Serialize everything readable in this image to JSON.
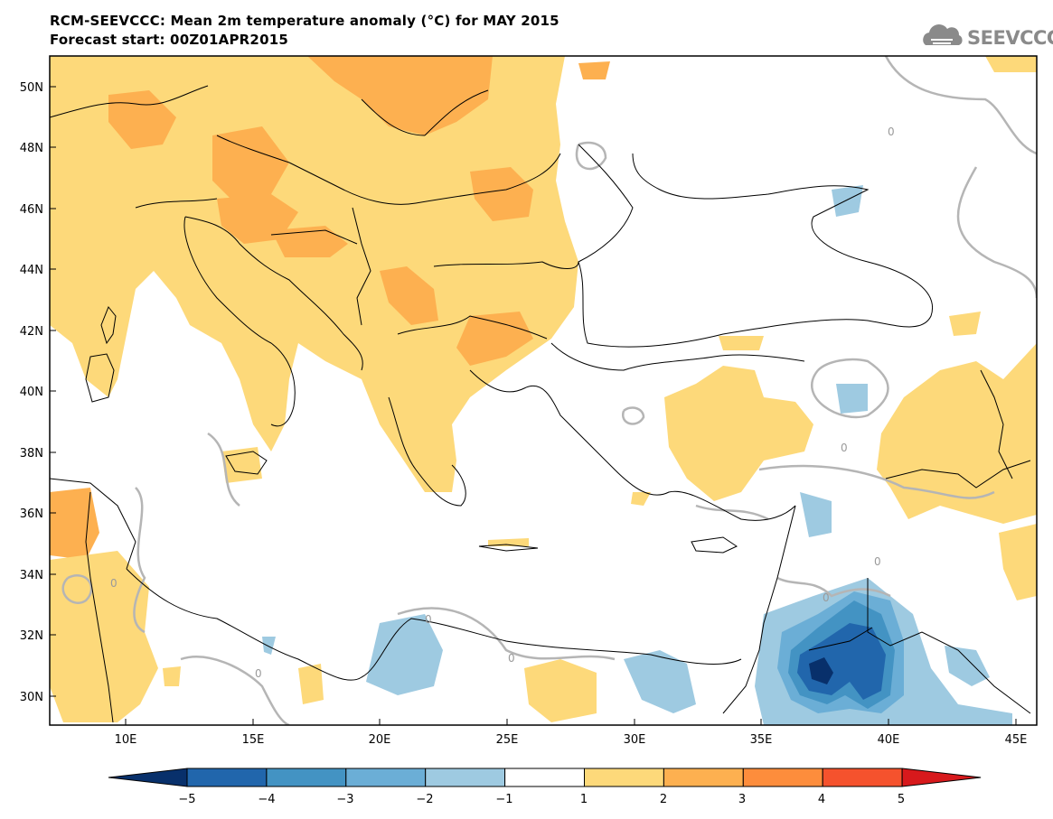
{
  "title": {
    "line1": "RCM-SEEVCCC: Mean 2m temperature anomaly (°C) for MAY 2015",
    "line2": "Forecast start: 00Z01APR2015"
  },
  "logo": {
    "text": "SEEVCCC",
    "icon": "cloud-icon"
  },
  "map": {
    "lat_labels": [
      "50N",
      "48N",
      "46N",
      "44N",
      "42N",
      "40N",
      "38N",
      "36N",
      "34N",
      "32N",
      "30N"
    ],
    "lon_labels": [
      "10E",
      "15E",
      "20E",
      "25E",
      "30E",
      "35E",
      "40E",
      "45E"
    ],
    "contour_labels": [
      "0",
      "0",
      "0",
      "0",
      "0",
      "0",
      "0",
      "0"
    ]
  },
  "legend": {
    "colors": [
      "#08306b",
      "#2166ac",
      "#4393c3",
      "#6baed6",
      "#9ecae1",
      "#ffffff",
      "#fdd97a",
      "#fdb050",
      "#fd8d3c",
      "#f5522d",
      "#d7191c"
    ],
    "ticks": [
      "−5",
      "−4",
      "−3",
      "−2",
      "−1",
      "1",
      "2",
      "3",
      "4",
      "5"
    ]
  }
}
